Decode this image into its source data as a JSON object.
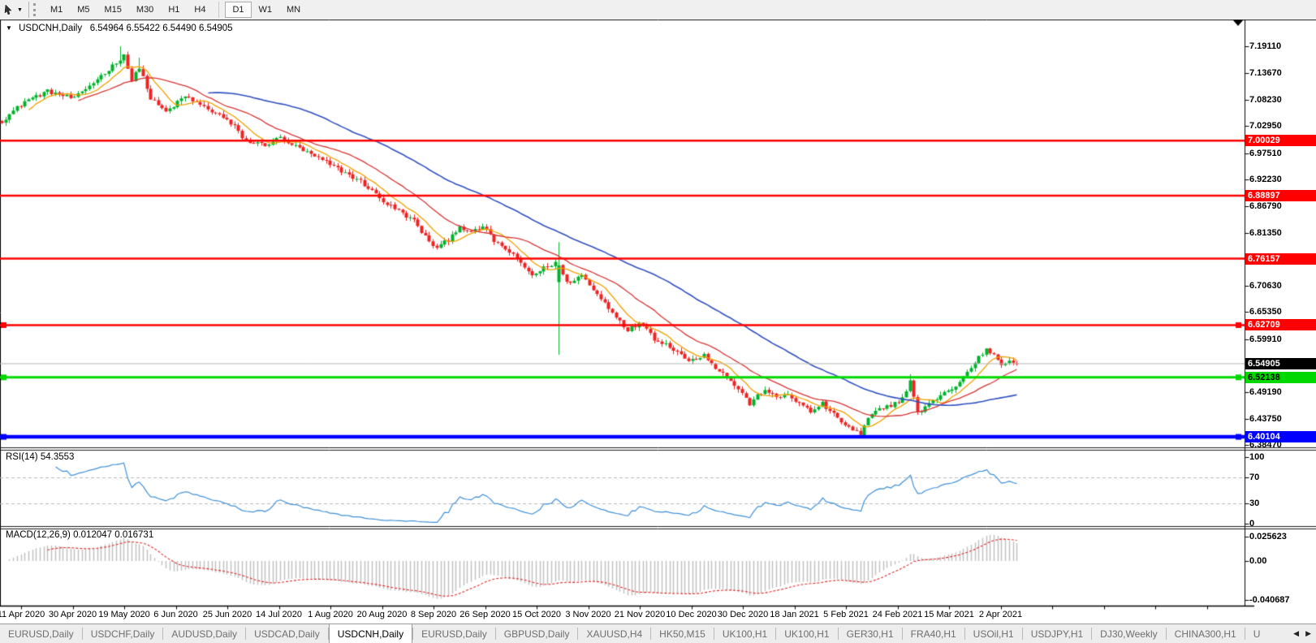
{
  "toolbar": {
    "timeframe_groups": [
      [
        "M1",
        "M5",
        "M15",
        "M30",
        "H1",
        "H4"
      ],
      [
        "D1",
        "W1",
        "MN"
      ]
    ],
    "active": "D1"
  },
  "chart": {
    "title_symbol": "USDCNH,Daily",
    "title_ohlc": "6.54964 6.55422 6.54490 6.54905"
  },
  "chart_data": {
    "type": "candlestick",
    "symbol": "USDCNH",
    "timeframe": "Daily",
    "bars": 267,
    "last_ohlc": {
      "open": "6.54964",
      "high": "6.55422",
      "low": "6.54490",
      "close": "6.54905"
    },
    "up_color": "#00b22c",
    "down_color": "#ee2222",
    "price_path": [
      [
        0,
        7.04
      ],
      [
        6,
        7.08
      ],
      [
        12,
        7.1
      ],
      [
        19,
        7.085
      ],
      [
        25,
        7.125
      ],
      [
        30,
        7.158
      ],
      [
        32,
        7.175
      ],
      [
        34,
        7.12
      ],
      [
        36,
        7.15
      ],
      [
        39,
        7.085
      ],
      [
        43,
        7.058
      ],
      [
        48,
        7.09
      ],
      [
        53,
        7.068
      ],
      [
        57,
        7.052
      ],
      [
        61,
        7.028
      ],
      [
        64,
        6.998
      ],
      [
        69,
        6.992
      ],
      [
        73,
        7.006
      ],
      [
        77,
        6.988
      ],
      [
        81,
        6.972
      ],
      [
        86,
        6.952
      ],
      [
        90,
        6.935
      ],
      [
        94,
        6.918
      ],
      [
        97,
        6.898
      ],
      [
        101,
        6.872
      ],
      [
        104,
        6.858
      ],
      [
        108,
        6.838
      ],
      [
        111,
        6.805
      ],
      [
        114,
        6.782
      ],
      [
        117,
        6.8
      ],
      [
        120,
        6.828
      ],
      [
        123,
        6.812
      ],
      [
        126,
        6.828
      ],
      [
        129,
        6.798
      ],
      [
        133,
        6.775
      ],
      [
        136,
        6.752
      ],
      [
        139,
        6.728
      ],
      [
        142,
        6.742
      ],
      [
        145,
        6.754
      ],
      [
        146,
        6.748
      ],
      [
        148,
        6.712
      ],
      [
        152,
        6.728
      ],
      [
        155,
        6.698
      ],
      [
        158,
        6.672
      ],
      [
        161,
        6.645
      ],
      [
        164,
        6.618
      ],
      [
        168,
        6.632
      ],
      [
        171,
        6.6
      ],
      [
        174,
        6.588
      ],
      [
        177,
        6.575
      ],
      [
        180,
        6.553
      ],
      [
        184,
        6.568
      ],
      [
        187,
        6.542
      ],
      [
        190,
        6.522
      ],
      [
        193,
        6.498
      ],
      [
        196,
        6.468
      ],
      [
        200,
        6.498
      ],
      [
        203,
        6.478
      ],
      [
        206,
        6.488
      ],
      [
        209,
        6.468
      ],
      [
        212,
        6.452
      ],
      [
        215,
        6.468
      ],
      [
        219,
        6.438
      ],
      [
        222,
        6.42
      ],
      [
        225,
        6.405
      ],
      [
        227,
        6.438
      ],
      [
        229,
        6.452
      ],
      [
        232,
        6.462
      ],
      [
        236,
        6.478
      ],
      [
        238,
        6.515
      ],
      [
        240,
        6.448
      ],
      [
        242,
        6.462
      ],
      [
        244,
        6.472
      ],
      [
        246,
        6.488
      ],
      [
        250,
        6.502
      ],
      [
        253,
        6.532
      ],
      [
        256,
        6.562
      ],
      [
        258,
        6.578
      ],
      [
        260,
        6.568
      ],
      [
        262,
        6.548
      ],
      [
        264,
        6.558
      ],
      [
        266,
        6.549
      ]
    ],
    "special_bars": {
      "31": {
        "high": 7.191
      },
      "36": {
        "high": 7.168
      },
      "146": {
        "open": 6.714,
        "close": 6.748,
        "high": 6.795,
        "low": 6.567
      },
      "225": {
        "low": 6.4015
      },
      "238": {
        "high": 6.528
      },
      "266": {
        "open": 6.54964,
        "close": 6.54905,
        "high": 6.55422,
        "low": 6.5449
      }
    },
    "moving_averages": [
      {
        "name": "fast",
        "period": 8,
        "color": "#f0a000"
      },
      {
        "name": "medium",
        "period": 21,
        "color": "#d83434"
      },
      {
        "name": "slow",
        "period": 55,
        "color": "#3050c0"
      }
    ],
    "h_lines": [
      {
        "label": "7.00029",
        "value": 7.00029,
        "color": "#ff0000",
        "text_color": "#ffffff",
        "width": 2.5,
        "handles": false
      },
      {
        "label": "6.88897",
        "value": 6.88897,
        "color": "#ff0000",
        "text_color": "#ffffff",
        "width": 2.5,
        "handles": false
      },
      {
        "label": "6.76157",
        "value": 6.76157,
        "color": "#ff0000",
        "text_color": "#ffffff",
        "width": 2.5,
        "handles": false
      },
      {
        "label": "6.62709",
        "value": 6.62709,
        "color": "#ff0000",
        "text_color": "#ffffff",
        "width": 2.5,
        "handles": true
      },
      {
        "label": "6.52138",
        "value": 6.52138,
        "color": "#00d800",
        "text_color": "#000000",
        "width": 3,
        "handles": true
      },
      {
        "label": "6.40104",
        "value": 6.40104,
        "color": "#0000ff",
        "text_color": "#ffffff",
        "width": 4.5,
        "handles": true
      }
    ],
    "current_price_line": {
      "label": "6.54905",
      "value": 6.54905,
      "bg": "#000000",
      "fg": "#ffffff",
      "line_color": "#b4b4b4"
    },
    "y_axis": {
      "ticks": [
        "7.19110",
        "7.13670",
        "7.08230",
        "7.02950",
        "6.97510",
        "6.92230",
        "6.86790",
        "6.81350",
        "6.70630",
        "6.65350",
        "6.59910",
        "6.49190",
        "6.43750",
        "6.38470"
      ]
    },
    "x_axis": {
      "labels": [
        "11 Apr 2020",
        "30 Apr 2020",
        "19 May 2020",
        "6 Jun 2020",
        "25 Jun 2020",
        "14 Jul 2020",
        "1 Aug 2020",
        "20 Aug 2020",
        "8 Sep 2020",
        "26 Sep 2020",
        "15 Oct 2020",
        "3 Nov 2020",
        "21 Nov 2020",
        "10 Dec 2020",
        "30 Dec 2020",
        "18 Jan 2021",
        "5 Feb 2021",
        "24 Feb 2021",
        "15 Mar 2021",
        "2 Apr 2021"
      ]
    },
    "rsi": {
      "name": "RSI(14)",
      "value": "54.3553",
      "period": 14,
      "color": "#3d8fd8",
      "levels": [
        {
          "label": "100",
          "v": 100,
          "dashed": false
        },
        {
          "label": "70",
          "v": 70,
          "dashed": true
        },
        {
          "label": "30",
          "v": 30,
          "dashed": true
        },
        {
          "label": "0",
          "v": 0,
          "dashed": false
        }
      ]
    },
    "macd": {
      "name": "MACD(12,26,9)",
      "value": "0.012047 0.016731",
      "fast": 12,
      "slow": 26,
      "signal": 9,
      "hist_color": "#c0c0c0",
      "signal_color": "#e02828",
      "axis": [
        {
          "label": "0.025623",
          "v": 0.025623
        },
        {
          "label": "0.00",
          "v": 0
        },
        {
          "label": "-0.040687",
          "v": -0.040687
        }
      ]
    }
  },
  "tabs": {
    "items": [
      "EURUSD,Daily",
      "USDCHF,Daily",
      "AUDUSD,Daily",
      "USDCAD,Daily",
      "USDCNH,Daily",
      "EURUSD,Daily",
      "GBPUSD,Daily",
      "XAUUSD,H4",
      "HK50,M15",
      "UK100,H1",
      "UK100,H1",
      "GER30,H1",
      "FRA40,H1",
      "USOil,H1",
      "USDJPY,H1",
      "DJ30,Weekly",
      "CHINA300,H1",
      "U"
    ],
    "active_index": 4
  }
}
